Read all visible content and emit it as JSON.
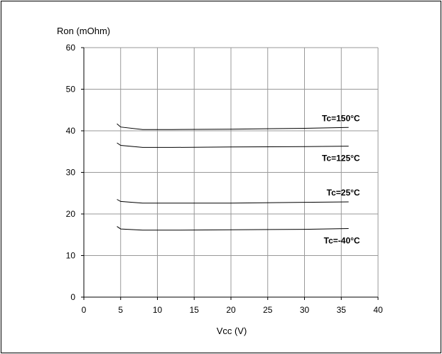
{
  "chart_data": {
    "type": "line",
    "title": "",
    "xlabel": "Vcc (V)",
    "ylabel": "Ron (mOhm)",
    "xlim": [
      0,
      40
    ],
    "ylim": [
      0,
      60
    ],
    "xticks": [
      0,
      5,
      10,
      15,
      20,
      25,
      30,
      35,
      40
    ],
    "yticks": [
      0,
      10,
      20,
      30,
      40,
      50,
      60
    ],
    "grid": true,
    "colors": {
      "line": "#000000",
      "grid": "#999999",
      "axis": "#000000"
    },
    "series": [
      {
        "name": "Tc=150°C",
        "x": [
          4.5,
          5,
          8,
          12,
          20,
          30,
          36
        ],
        "y": [
          41.7,
          40.9,
          40.3,
          40.3,
          40.4,
          40.6,
          40.8
        ]
      },
      {
        "name": "Tc=125°C",
        "x": [
          4.5,
          5,
          8,
          12,
          20,
          30,
          36
        ],
        "y": [
          37.1,
          36.5,
          36.0,
          36.0,
          36.1,
          36.2,
          36.3
        ]
      },
      {
        "name": "Tc=25°C",
        "x": [
          4.5,
          5,
          8,
          12,
          20,
          30,
          36
        ],
        "y": [
          23.5,
          23.0,
          22.6,
          22.6,
          22.6,
          22.8,
          22.9
        ]
      },
      {
        "name": "Tc=-40°C",
        "x": [
          4.5,
          5,
          8,
          12,
          20,
          30,
          36
        ],
        "y": [
          17.0,
          16.4,
          16.1,
          16.1,
          16.2,
          16.3,
          16.5
        ]
      }
    ]
  }
}
